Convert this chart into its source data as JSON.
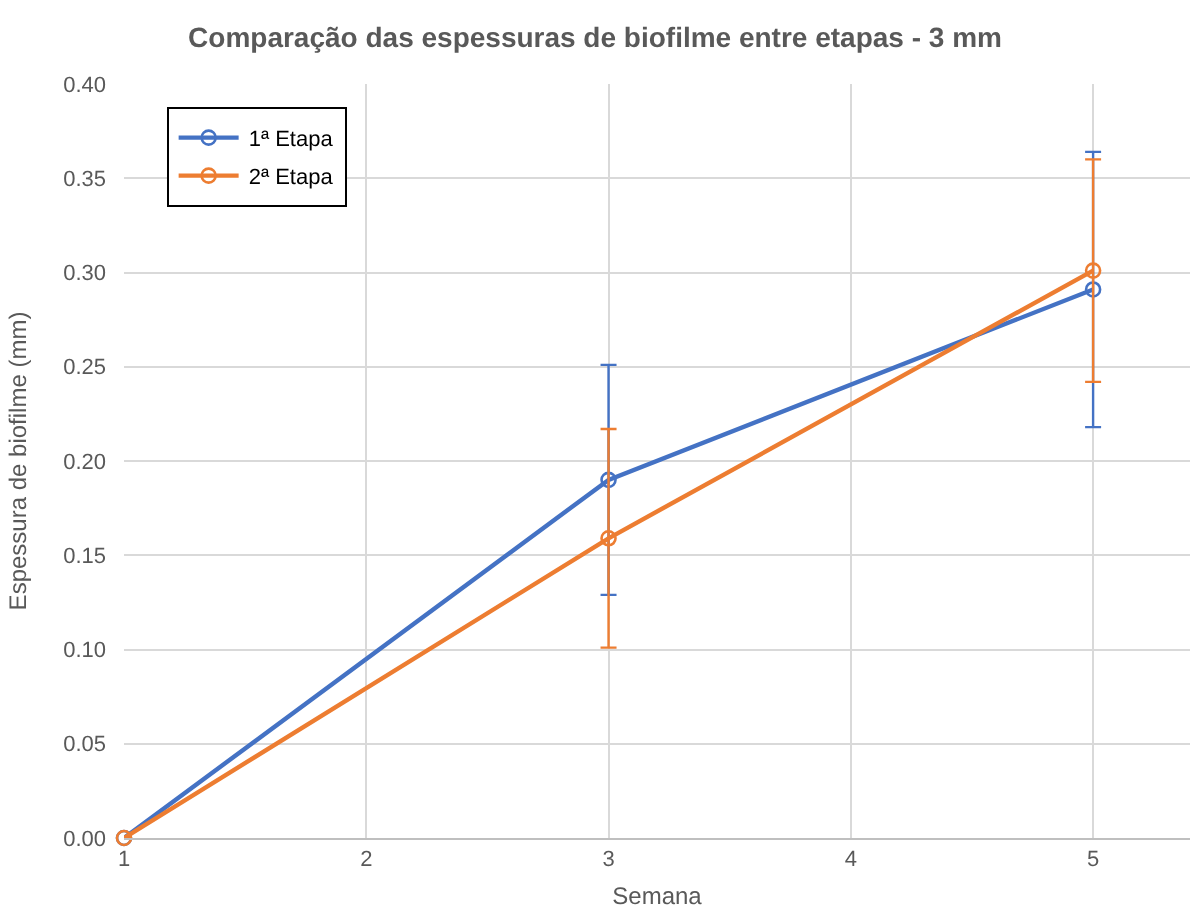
{
  "chart_data": {
    "type": "line",
    "title": "Comparação das espessuras de biofilme entre etapas - 3 mm",
    "xlabel": "Semana",
    "ylabel": "Espessura de biofilme (mm)",
    "x": [
      1,
      3,
      5
    ],
    "series": [
      {
        "name": "1ª Etapa",
        "color": "#4472c4",
        "values": [
          0,
          0.19,
          0.291
        ],
        "errors": [
          null,
          0.061,
          0.073
        ]
      },
      {
        "name": "2ª Etapa",
        "color": "#ed7d31",
        "values": [
          0,
          0.159,
          0.301
        ],
        "errors": [
          null,
          0.058,
          0.059
        ]
      }
    ],
    "xlim": [
      1,
      5.4
    ],
    "xticks": [
      1,
      2,
      3,
      4,
      5
    ],
    "ylim": [
      0,
      0.4
    ],
    "yticks": [
      {
        "value": 0,
        "label": "0.00"
      },
      {
        "value": 0.05,
        "label": "0.05"
      },
      {
        "value": 0.1,
        "label": "0.10"
      },
      {
        "value": 0.15,
        "label": "0.15"
      },
      {
        "value": 0.2,
        "label": "0.20"
      },
      {
        "value": 0.25,
        "label": "0.25"
      },
      {
        "value": 0.3,
        "label": "0.30"
      },
      {
        "value": 0.35,
        "label": "0.35"
      },
      {
        "value": 0.4,
        "label": "0.40"
      }
    ],
    "grid": true,
    "legend": "top left",
    "marker": "circle",
    "line_style": "solid"
  }
}
